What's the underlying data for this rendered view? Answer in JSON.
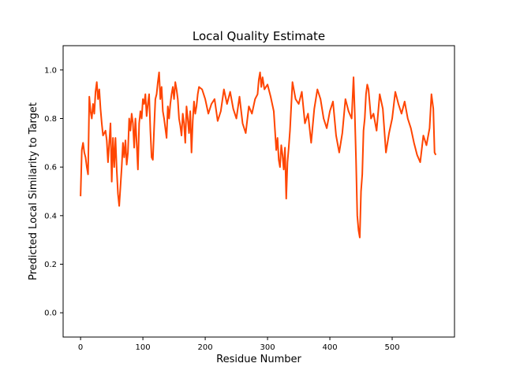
{
  "chart_data": {
    "type": "line",
    "title": "Local Quality Estimate",
    "xlabel": "Residue Number",
    "ylabel": "Predicted Local Similarity to Target",
    "xlim": [
      -28,
      600
    ],
    "ylim": [
      -0.1,
      1.1
    ],
    "xticks": [
      0,
      100,
      200,
      300,
      400,
      500
    ],
    "yticks": [
      0.0,
      0.2,
      0.4,
      0.6,
      0.8,
      1.0
    ],
    "xtick_labels": [
      "0",
      "100",
      "200",
      "300",
      "400",
      "500"
    ],
    "ytick_labels": [
      "0.0",
      "0.2",
      "0.4",
      "0.6",
      "0.8",
      "1.0"
    ],
    "grid": false,
    "legend": "none",
    "series": [
      {
        "color": "#ff4500",
        "x": [
          0,
          2,
          4,
          6,
          8,
          10,
          12,
          14,
          16,
          18,
          20,
          22,
          24,
          26,
          28,
          30,
          32,
          34,
          36,
          38,
          40,
          42,
          44,
          46,
          48,
          50,
          52,
          54,
          56,
          58,
          60,
          62,
          64,
          66,
          68,
          70,
          72,
          74,
          76,
          78,
          80,
          82,
          84,
          86,
          88,
          90,
          92,
          94,
          96,
          98,
          100,
          102,
          104,
          106,
          108,
          110,
          112,
          114,
          116,
          118,
          120,
          122,
          124,
          126,
          128,
          130,
          132,
          134,
          136,
          138,
          140,
          142,
          144,
          146,
          148,
          150,
          152,
          154,
          156,
          158,
          160,
          162,
          164,
          166,
          168,
          170,
          172,
          174,
          176,
          178,
          180,
          182,
          184,
          186,
          188,
          190,
          195,
          200,
          205,
          210,
          215,
          220,
          225,
          230,
          235,
          240,
          245,
          250,
          255,
          260,
          265,
          270,
          275,
          280,
          284,
          286,
          288,
          290,
          292,
          295,
          300,
          305,
          310,
          314,
          316,
          318,
          320,
          322,
          324,
          326,
          328,
          330,
          332,
          334,
          336,
          340,
          345,
          350,
          355,
          360,
          365,
          370,
          375,
          380,
          385,
          390,
          395,
          400,
          405,
          410,
          415,
          420,
          425,
          430,
          435,
          438,
          440,
          442,
          444,
          446,
          448,
          450,
          452,
          454,
          456,
          458,
          460,
          462,
          464,
          466,
          470,
          475,
          480,
          485,
          490,
          495,
          500,
          505,
          510,
          515,
          520,
          525,
          530,
          535,
          540,
          545,
          550,
          555,
          560,
          563,
          566,
          568,
          570
        ],
        "y": [
          0.48,
          0.67,
          0.7,
          0.66,
          0.64,
          0.6,
          0.57,
          0.89,
          0.83,
          0.8,
          0.86,
          0.82,
          0.91,
          0.95,
          0.88,
          0.92,
          0.84,
          0.78,
          0.73,
          0.74,
          0.75,
          0.71,
          0.62,
          0.7,
          0.78,
          0.54,
          0.72,
          0.6,
          0.72,
          0.59,
          0.49,
          0.44,
          0.52,
          0.6,
          0.7,
          0.64,
          0.71,
          0.61,
          0.66,
          0.8,
          0.75,
          0.82,
          0.78,
          0.68,
          0.8,
          0.7,
          0.59,
          0.78,
          0.83,
          0.8,
          0.88,
          0.86,
          0.9,
          0.81,
          0.86,
          0.9,
          0.75,
          0.64,
          0.63,
          0.76,
          0.88,
          0.9,
          0.95,
          0.99,
          0.88,
          0.93,
          0.83,
          0.8,
          0.76,
          0.72,
          0.85,
          0.8,
          0.86,
          0.9,
          0.93,
          0.88,
          0.95,
          0.92,
          0.88,
          0.8,
          0.77,
          0.73,
          0.82,
          0.78,
          0.7,
          0.85,
          0.8,
          0.74,
          0.83,
          0.66,
          0.79,
          0.87,
          0.82,
          0.85,
          0.9,
          0.93,
          0.92,
          0.88,
          0.82,
          0.86,
          0.88,
          0.79,
          0.83,
          0.92,
          0.86,
          0.91,
          0.84,
          0.8,
          0.89,
          0.78,
          0.74,
          0.85,
          0.82,
          0.88,
          0.9,
          0.96,
          0.99,
          0.93,
          0.97,
          0.92,
          0.94,
          0.89,
          0.83,
          0.67,
          0.72,
          0.63,
          0.6,
          0.69,
          0.65,
          0.59,
          0.68,
          0.47,
          0.62,
          0.68,
          0.75,
          0.95,
          0.88,
          0.86,
          0.91,
          0.78,
          0.82,
          0.7,
          0.84,
          0.92,
          0.88,
          0.8,
          0.76,
          0.83,
          0.87,
          0.73,
          0.66,
          0.74,
          0.88,
          0.83,
          0.8,
          0.97,
          0.82,
          0.63,
          0.4,
          0.34,
          0.31,
          0.5,
          0.57,
          0.75,
          0.8,
          0.9,
          0.94,
          0.92,
          0.86,
          0.8,
          0.82,
          0.75,
          0.9,
          0.84,
          0.66,
          0.74,
          0.8,
          0.91,
          0.86,
          0.82,
          0.87,
          0.8,
          0.76,
          0.7,
          0.65,
          0.62,
          0.73,
          0.69,
          0.76,
          0.9,
          0.84,
          0.66,
          0.65
        ]
      }
    ]
  }
}
